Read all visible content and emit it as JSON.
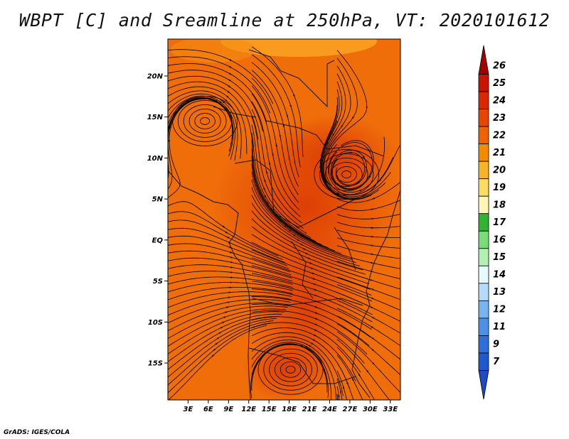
{
  "title": "WBPT [C] and Sreamline at 250hPa, VT: 2020101612",
  "credit": "GrADS: IGES/COLA",
  "map": {
    "lon_labels": [
      "3E",
      "6E",
      "9E",
      "12E",
      "15E",
      "18E",
      "21E",
      "24E",
      "27E",
      "30E",
      "33E"
    ],
    "lat_labels": [
      "20N",
      "15N",
      "10N",
      "5N",
      "EQ",
      "5S",
      "10S",
      "15S"
    ],
    "vortex_centers": [
      {
        "lon": 5.5,
        "lat": 14.5
      },
      {
        "lon": 26.5,
        "lat": 8.0
      },
      {
        "lon": 18.2,
        "lat": -15.8
      }
    ]
  },
  "colorbar": {
    "labels": [
      "26",
      "25",
      "24",
      "23",
      "22",
      "21",
      "20",
      "19",
      "18",
      "17",
      "16",
      "15",
      "14",
      "13",
      "12",
      "11",
      "9",
      "7"
    ],
    "colors": [
      "#a50000",
      "#c81400",
      "#dc2800",
      "#e64600",
      "#f06400",
      "#f58c00",
      "#f8b428",
      "#fbdc64",
      "#fff5b4",
      "#32b432",
      "#78dc78",
      "#b4f0b4",
      "#e6faff",
      "#b4dcfa",
      "#78b4f0",
      "#4b91e6",
      "#2d6edc",
      "#1e5acd",
      "#1e4bc3"
    ]
  }
}
